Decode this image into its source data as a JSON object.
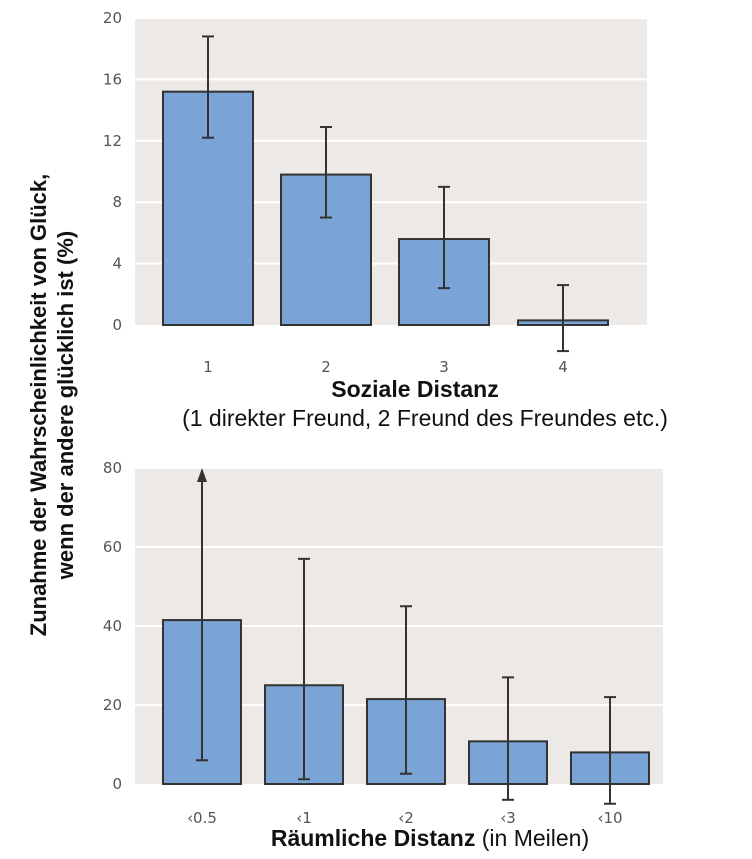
{
  "y_axis_label": {
    "line1": "Zunahme der Wahrscheinlichkeit von Glück,",
    "line2": "wenn der andere glücklich ist (%)"
  },
  "chart_data": [
    {
      "type": "bar",
      "categories": [
        "1",
        "2",
        "3",
        "4"
      ],
      "values": [
        15.2,
        9.8,
        5.6,
        0.3
      ],
      "error_low": [
        12.2,
        7.0,
        2.4,
        -1.7
      ],
      "error_high": [
        18.8,
        12.9,
        9.0,
        2.6
      ],
      "ylim": [
        0,
        20
      ],
      "yticks": [
        0,
        4,
        8,
        12,
        16,
        20
      ],
      "grid": true,
      "xlabel_bold": "Soziale Distanz",
      "xlabel_normal": "",
      "xlabel_line2": "(1 direkter Freund, 2 Freund des Freundes etc.)",
      "colors": {
        "bar": "#7aa3d6",
        "bar_edge": "#333333",
        "plot_bg": "#ece9e6",
        "grid": "#ffffff",
        "error": "#333333"
      }
    },
    {
      "type": "bar",
      "categories": [
        "‹0.5",
        "‹1",
        "‹2",
        "‹3",
        "‹10"
      ],
      "values": [
        41.5,
        25.0,
        21.5,
        10.8,
        8.0
      ],
      "error_low": [
        6.0,
        1.2,
        2.6,
        -4.0,
        -5.0
      ],
      "error_high": [
        80.0,
        57.0,
        45.0,
        27.0,
        22.0
      ],
      "error_arrow_up": [
        true,
        false,
        false,
        false,
        false
      ],
      "ylim": [
        0,
        80
      ],
      "yticks": [
        0,
        20,
        40,
        60,
        80
      ],
      "grid": true,
      "xlabel_bold": "Räumliche Distanz",
      "xlabel_normal": " (in Meilen)",
      "xlabel_line2": "",
      "colors": {
        "bar": "#7aa3d6",
        "bar_edge": "#333333",
        "plot_bg": "#ece9e6",
        "grid": "#ffffff",
        "error": "#333333"
      }
    }
  ]
}
